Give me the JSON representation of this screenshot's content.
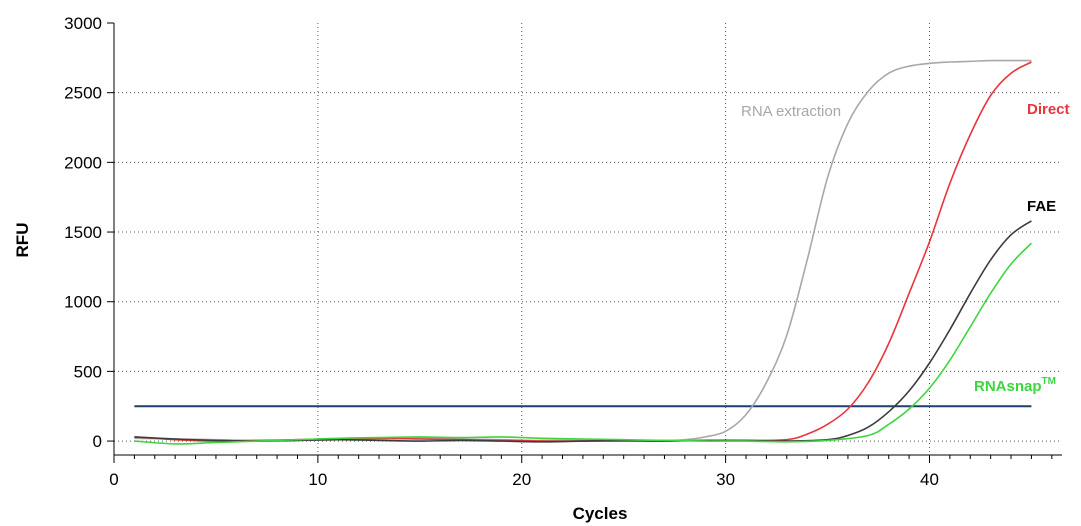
{
  "chart_data": {
    "type": "line",
    "xlabel": "Cycles",
    "ylabel": "RFU",
    "xlim": [
      0,
      46.5
    ],
    "ylim": [
      -100,
      3000
    ],
    "x_ticks": [
      0,
      10,
      20,
      30,
      40
    ],
    "y_ticks": [
      0,
      500,
      1000,
      1500,
      2000,
      2500,
      3000
    ],
    "grid": true,
    "threshold": {
      "value": 250,
      "x_range": [
        1,
        45
      ],
      "color": "#1f3f6e"
    },
    "series": [
      {
        "name": "RNA extraction",
        "color": "#a8a8a8",
        "x": [
          1,
          3,
          5,
          7,
          9,
          11,
          13,
          15,
          17,
          19,
          21,
          23,
          25,
          27,
          28,
          29,
          30,
          31,
          32,
          33,
          34,
          35,
          36,
          37,
          38,
          39,
          40,
          41,
          42,
          43,
          44,
          45
        ],
        "y": [
          20,
          15,
          10,
          5,
          5,
          10,
          15,
          20,
          15,
          10,
          5,
          5,
          5,
          5,
          10,
          30,
          70,
          190,
          420,
          760,
          1300,
          1890,
          2280,
          2510,
          2640,
          2690,
          2710,
          2720,
          2725,
          2730,
          2730,
          2730
        ]
      },
      {
        "name": "Direct",
        "color": "#e8363c",
        "x": [
          1,
          3,
          5,
          7,
          9,
          11,
          13,
          15,
          17,
          19,
          21,
          23,
          25,
          27,
          29,
          31,
          33,
          34,
          35,
          36,
          37,
          38,
          39,
          40,
          41,
          42,
          43,
          44,
          45
        ],
        "y": [
          30,
          10,
          0,
          5,
          10,
          15,
          20,
          15,
          10,
          5,
          0,
          0,
          0,
          0,
          5,
          5,
          10,
          50,
          120,
          230,
          420,
          700,
          1060,
          1430,
          1850,
          2200,
          2480,
          2640,
          2720
        ]
      },
      {
        "name": "FAE",
        "color": "#3c3c3c",
        "x": [
          1,
          3,
          5,
          7,
          9,
          11,
          13,
          15,
          17,
          19,
          21,
          23,
          25,
          27,
          29,
          31,
          33,
          35,
          36,
          37,
          38,
          39,
          40,
          41,
          42,
          43,
          44,
          45
        ],
        "y": [
          30,
          15,
          5,
          0,
          5,
          10,
          5,
          0,
          5,
          0,
          -5,
          0,
          5,
          0,
          5,
          5,
          0,
          10,
          40,
          100,
          210,
          360,
          560,
          800,
          1060,
          1300,
          1480,
          1580
        ]
      },
      {
        "name": "RNAsnap™",
        "color": "#3ed63e",
        "x": [
          1,
          3,
          5,
          7,
          9,
          11,
          13,
          15,
          17,
          19,
          21,
          23,
          25,
          27,
          29,
          31,
          33,
          35,
          37,
          38,
          39,
          40,
          41,
          42,
          43,
          44,
          45
        ],
        "y": [
          0,
          -20,
          -10,
          0,
          10,
          20,
          25,
          30,
          25,
          30,
          20,
          15,
          10,
          5,
          0,
          0,
          -5,
          5,
          40,
          120,
          230,
          380,
          580,
          820,
          1060,
          1270,
          1420
        ]
      }
    ]
  },
  "labels": {
    "rna_extraction": "RNA extraction",
    "direct": "Direct",
    "fae": "FAE",
    "rnasnap": "RNAsnap",
    "rnasnap_tm": "TM"
  }
}
